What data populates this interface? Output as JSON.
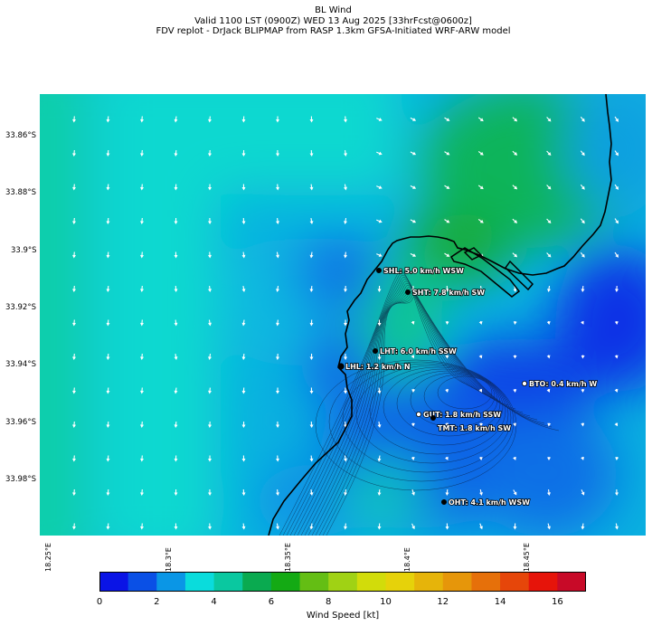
{
  "header": {
    "title": "BL Wind",
    "subtitle1": "Valid 1100 LST (0900Z) WED 13 Aug 2025 [33hrFcst@0600z]",
    "subtitle2": "FDV replot - DrJack BLIPMAP from RASP 1.3km GFSA-Initiated WRF-ARW model"
  },
  "axes": {
    "lat_labels": [
      "33.86°S",
      "33.88°S",
      "33.9°S",
      "33.92°S",
      "33.94°S",
      "33.96°S",
      "33.98°S"
    ],
    "lon_labels": [
      "18.25°E",
      "18.3°E",
      "18.35°E",
      "18.4°E",
      "18.45°E"
    ]
  },
  "stations": [
    {
      "code": "SHL",
      "label": "SHL: 5.0 km/h WSW"
    },
    {
      "code": "SHT",
      "label": "SHT: 7.8 km/h SW"
    },
    {
      "code": "LHT",
      "label": "LHT: 6.0 km/h SSW"
    },
    {
      "code": "LHL",
      "label": "LHL: 1.2 km/h N"
    },
    {
      "code": "BTO",
      "label": "BTO: 0.4 km/h W"
    },
    {
      "code": "GUT",
      "label": "GUT: 1.8 km/h SSW"
    },
    {
      "code": "TMT",
      "label": "TMT: 1.8 km/h SW"
    },
    {
      "code": "OHT",
      "label": "OHT: 4.1 km/h WSW"
    }
  ],
  "colorbar": {
    "label": "Wind Speed [kt]",
    "ticks": [
      "0",
      "2",
      "4",
      "6",
      "8",
      "10",
      "12",
      "14",
      "16"
    ],
    "colors": [
      "#0a14e6",
      "#0a50e6",
      "#0a96e6",
      "#0adcdc",
      "#0ac8a0",
      "#0aaa50",
      "#14aa14",
      "#64be14",
      "#a0d214",
      "#d2dc0a",
      "#e6d20a",
      "#e6b40a",
      "#e6960a",
      "#e6700a",
      "#e6460a",
      "#e6140a",
      "#c80a28"
    ]
  }
}
